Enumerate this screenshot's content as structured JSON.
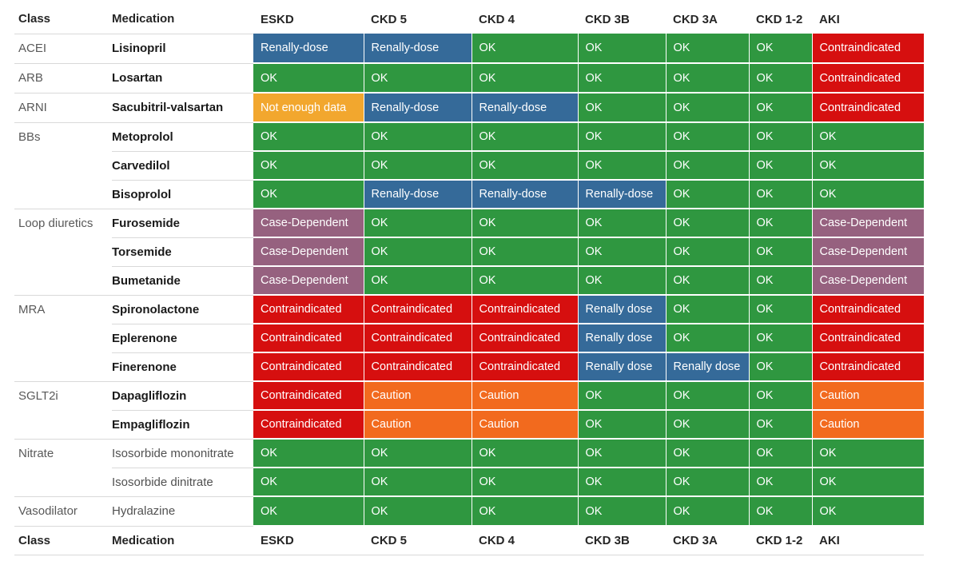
{
  "chart_data": {
    "type": "table",
    "title": "",
    "columns": [
      "Class",
      "Medication",
      "ESKD",
      "CKD 5",
      "CKD 4",
      "CKD 3B",
      "CKD 3A",
      "CKD 1-2",
      "AKI"
    ],
    "footer": [
      "Class",
      "Medication",
      "ESKD",
      "CKD 5",
      "CKD 4",
      "CKD 3B",
      "CKD 3A",
      "CKD 1-2",
      "AKI"
    ],
    "status_colors": {
      "ok": "#2F9740",
      "renal": "#356A99",
      "contra": "#D60F0F",
      "nodata": "#F2A72E",
      "caution": "#F26A1E",
      "case": "#96617F"
    },
    "groups": [
      {
        "class": "ACEI",
        "rows": [
          {
            "medication": "Lisinopril",
            "emphasis": true,
            "cells": [
              {
                "label": "Renally-dose",
                "status": "renal"
              },
              {
                "label": "Renally-dose",
                "status": "renal"
              },
              {
                "label": "OK",
                "status": "ok"
              },
              {
                "label": "OK",
                "status": "ok"
              },
              {
                "label": "OK",
                "status": "ok"
              },
              {
                "label": "OK",
                "status": "ok"
              },
              {
                "label": "Contraindicated",
                "status": "contra"
              }
            ]
          }
        ]
      },
      {
        "class": "ARB",
        "rows": [
          {
            "medication": "Losartan",
            "emphasis": true,
            "cells": [
              {
                "label": "OK",
                "status": "ok"
              },
              {
                "label": "OK",
                "status": "ok"
              },
              {
                "label": "OK",
                "status": "ok"
              },
              {
                "label": "OK",
                "status": "ok"
              },
              {
                "label": "OK",
                "status": "ok"
              },
              {
                "label": "OK",
                "status": "ok"
              },
              {
                "label": "Contraindicated",
                "status": "contra"
              }
            ]
          }
        ]
      },
      {
        "class": "ARNI",
        "rows": [
          {
            "medication": "Sacubitril-valsartan",
            "emphasis": true,
            "cells": [
              {
                "label": "Not enough data",
                "status": "nodata"
              },
              {
                "label": "Renally-dose",
                "status": "renal"
              },
              {
                "label": "Renally-dose",
                "status": "renal"
              },
              {
                "label": "OK",
                "status": "ok"
              },
              {
                "label": "OK",
                "status": "ok"
              },
              {
                "label": "OK",
                "status": "ok"
              },
              {
                "label": "Contraindicated",
                "status": "contra"
              }
            ]
          }
        ]
      },
      {
        "class": "BBs",
        "rows": [
          {
            "medication": "Metoprolol",
            "emphasis": true,
            "cells": [
              {
                "label": "OK",
                "status": "ok"
              },
              {
                "label": "OK",
                "status": "ok"
              },
              {
                "label": "OK",
                "status": "ok"
              },
              {
                "label": "OK",
                "status": "ok"
              },
              {
                "label": "OK",
                "status": "ok"
              },
              {
                "label": "OK",
                "status": "ok"
              },
              {
                "label": "OK",
                "status": "ok"
              }
            ]
          },
          {
            "medication": "Carvedilol",
            "emphasis": true,
            "cells": [
              {
                "label": "OK",
                "status": "ok"
              },
              {
                "label": "OK",
                "status": "ok"
              },
              {
                "label": "OK",
                "status": "ok"
              },
              {
                "label": "OK",
                "status": "ok"
              },
              {
                "label": "OK",
                "status": "ok"
              },
              {
                "label": "OK",
                "status": "ok"
              },
              {
                "label": "OK",
                "status": "ok"
              }
            ]
          },
          {
            "medication": "Bisoprolol",
            "emphasis": true,
            "cells": [
              {
                "label": "OK",
                "status": "ok"
              },
              {
                "label": "Renally-dose",
                "status": "renal"
              },
              {
                "label": "Renally-dose",
                "status": "renal"
              },
              {
                "label": "Renally-dose",
                "status": "renal"
              },
              {
                "label": "OK",
                "status": "ok"
              },
              {
                "label": "OK",
                "status": "ok"
              },
              {
                "label": "OK",
                "status": "ok"
              }
            ]
          }
        ]
      },
      {
        "class": "Loop diuretics",
        "rows": [
          {
            "medication": "Furosemide",
            "emphasis": true,
            "cells": [
              {
                "label": "Case-Dependent",
                "status": "case"
              },
              {
                "label": "OK",
                "status": "ok"
              },
              {
                "label": "OK",
                "status": "ok"
              },
              {
                "label": "OK",
                "status": "ok"
              },
              {
                "label": "OK",
                "status": "ok"
              },
              {
                "label": "OK",
                "status": "ok"
              },
              {
                "label": "Case-Dependent",
                "status": "case"
              }
            ]
          },
          {
            "medication": "Torsemide",
            "emphasis": true,
            "cells": [
              {
                "label": "Case-Dependent",
                "status": "case"
              },
              {
                "label": "OK",
                "status": "ok"
              },
              {
                "label": "OK",
                "status": "ok"
              },
              {
                "label": "OK",
                "status": "ok"
              },
              {
                "label": "OK",
                "status": "ok"
              },
              {
                "label": "OK",
                "status": "ok"
              },
              {
                "label": "Case-Dependent",
                "status": "case"
              }
            ]
          },
          {
            "medication": "Bumetanide",
            "emphasis": true,
            "cells": [
              {
                "label": "Case-Dependent",
                "status": "case"
              },
              {
                "label": "OK",
                "status": "ok"
              },
              {
                "label": "OK",
                "status": "ok"
              },
              {
                "label": "OK",
                "status": "ok"
              },
              {
                "label": "OK",
                "status": "ok"
              },
              {
                "label": "OK",
                "status": "ok"
              },
              {
                "label": "Case-Dependent",
                "status": "case"
              }
            ]
          }
        ]
      },
      {
        "class": "MRA",
        "rows": [
          {
            "medication": "Spironolactone",
            "emphasis": true,
            "cells": [
              {
                "label": "Contraindicated",
                "status": "contra"
              },
              {
                "label": "Contraindicated",
                "status": "contra"
              },
              {
                "label": "Contraindicated",
                "status": "contra"
              },
              {
                "label": "Renally dose",
                "status": "renal"
              },
              {
                "label": "OK",
                "status": "ok"
              },
              {
                "label": "OK",
                "status": "ok"
              },
              {
                "label": "Contraindicated",
                "status": "contra"
              }
            ]
          },
          {
            "medication": "Eplerenone",
            "emphasis": true,
            "cells": [
              {
                "label": "Contraindicated",
                "status": "contra"
              },
              {
                "label": "Contraindicated",
                "status": "contra"
              },
              {
                "label": "Contraindicated",
                "status": "contra"
              },
              {
                "label": "Renally dose",
                "status": "renal"
              },
              {
                "label": "OK",
                "status": "ok"
              },
              {
                "label": "OK",
                "status": "ok"
              },
              {
                "label": "Contraindicated",
                "status": "contra"
              }
            ]
          },
          {
            "medication": "Finerenone",
            "emphasis": true,
            "cells": [
              {
                "label": "Contraindicated",
                "status": "contra"
              },
              {
                "label": "Contraindicated",
                "status": "contra"
              },
              {
                "label": "Contraindicated",
                "status": "contra"
              },
              {
                "label": "Renally dose",
                "status": "renal"
              },
              {
                "label": "Renally dose",
                "status": "renal"
              },
              {
                "label": "OK",
                "status": "ok"
              },
              {
                "label": "Contraindicated",
                "status": "contra"
              }
            ]
          }
        ]
      },
      {
        "class": "SGLT2i",
        "rows": [
          {
            "medication": "Dapagliflozin",
            "emphasis": true,
            "cells": [
              {
                "label": "Contraindicated",
                "status": "contra"
              },
              {
                "label": "Caution",
                "status": "caution"
              },
              {
                "label": "Caution",
                "status": "caution"
              },
              {
                "label": "OK",
                "status": "ok"
              },
              {
                "label": "OK",
                "status": "ok"
              },
              {
                "label": "OK",
                "status": "ok"
              },
              {
                "label": "Caution",
                "status": "caution"
              }
            ]
          },
          {
            "medication": "Empagliflozin",
            "emphasis": true,
            "cells": [
              {
                "label": "Contraindicated",
                "status": "contra"
              },
              {
                "label": "Caution",
                "status": "caution"
              },
              {
                "label": "Caution",
                "status": "caution"
              },
              {
                "label": "OK",
                "status": "ok"
              },
              {
                "label": "OK",
                "status": "ok"
              },
              {
                "label": "OK",
                "status": "ok"
              },
              {
                "label": "Caution",
                "status": "caution"
              }
            ]
          }
        ]
      },
      {
        "class": "Nitrate",
        "rows": [
          {
            "medication": "Isosorbide mononitrate",
            "emphasis": false,
            "cells": [
              {
                "label": "OK",
                "status": "ok"
              },
              {
                "label": "OK",
                "status": "ok"
              },
              {
                "label": "OK",
                "status": "ok"
              },
              {
                "label": "OK",
                "status": "ok"
              },
              {
                "label": "OK",
                "status": "ok"
              },
              {
                "label": "OK",
                "status": "ok"
              },
              {
                "label": "OK",
                "status": "ok"
              }
            ]
          },
          {
            "medication": "Isosorbide dinitrate",
            "emphasis": false,
            "cells": [
              {
                "label": "OK",
                "status": "ok"
              },
              {
                "label": "OK",
                "status": "ok"
              },
              {
                "label": "OK",
                "status": "ok"
              },
              {
                "label": "OK",
                "status": "ok"
              },
              {
                "label": "OK",
                "status": "ok"
              },
              {
                "label": "OK",
                "status": "ok"
              },
              {
                "label": "OK",
                "status": "ok"
              }
            ]
          }
        ]
      },
      {
        "class": "Vasodilator",
        "rows": [
          {
            "medication": "Hydralazine",
            "emphasis": false,
            "cells": [
              {
                "label": "OK",
                "status": "ok"
              },
              {
                "label": "OK",
                "status": "ok"
              },
              {
                "label": "OK",
                "status": "ok"
              },
              {
                "label": "OK",
                "status": "ok"
              },
              {
                "label": "OK",
                "status": "ok"
              },
              {
                "label": "OK",
                "status": "ok"
              },
              {
                "label": "OK",
                "status": "ok"
              }
            ]
          }
        ]
      }
    ]
  }
}
